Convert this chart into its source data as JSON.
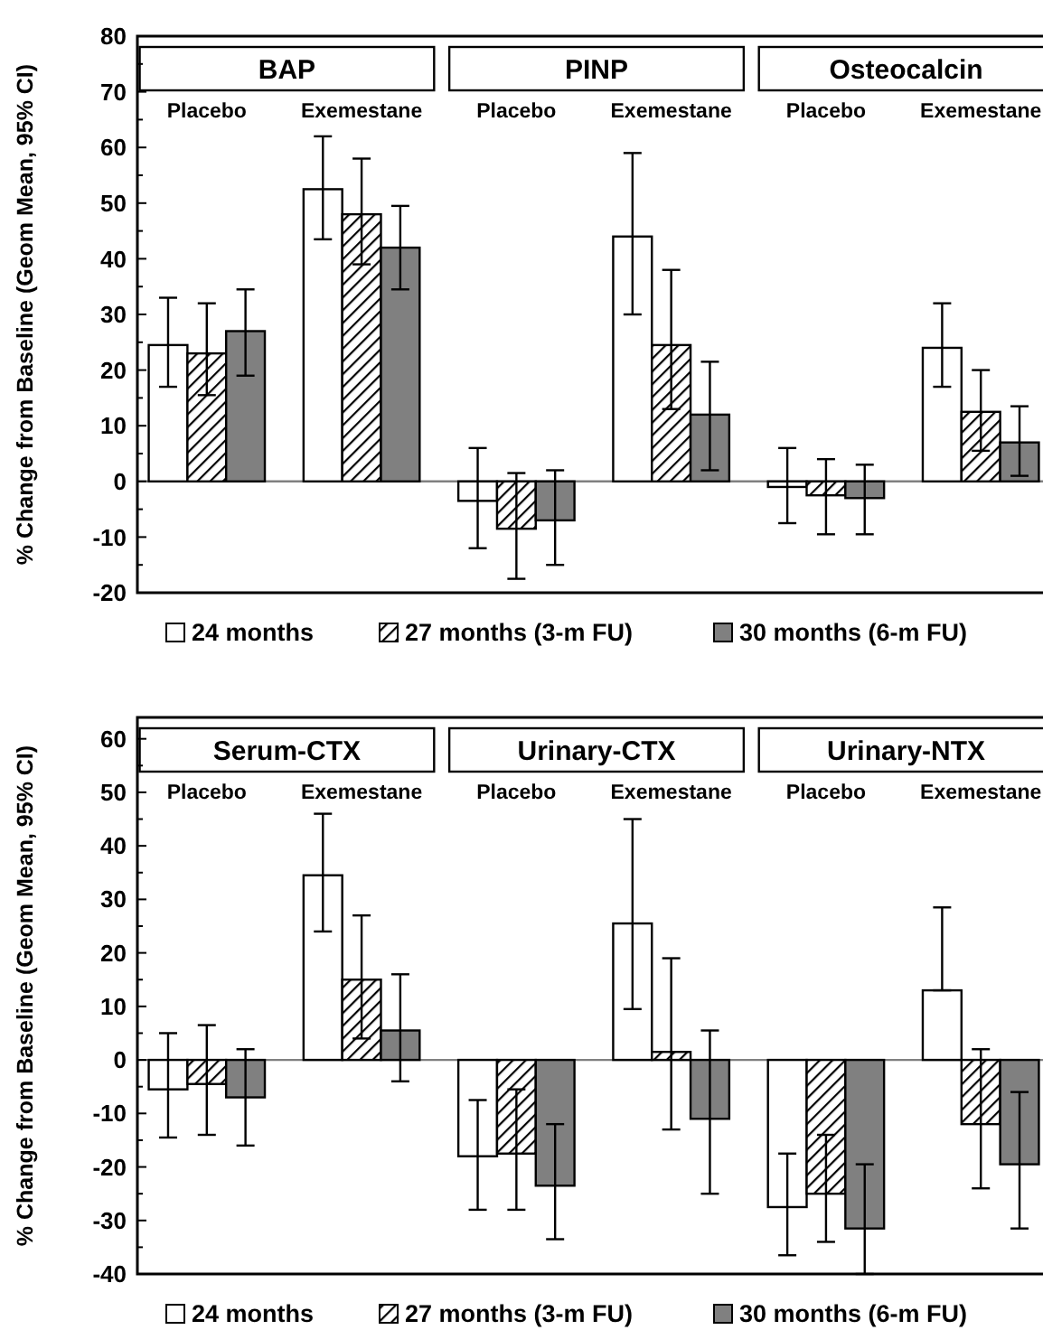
{
  "chart_data": [
    {
      "type": "bar",
      "ylabel": "% Change from Baseline (Geom Mean, 95% CI)",
      "categories": [
        "Placebo",
        "Exemestane",
        "Placebo",
        "Exemestane",
        "Placebo",
        "Exemestane"
      ],
      "annotations": [
        "BAP",
        "PINP",
        "Osteocalcin"
      ],
      "ylim": [
        -20,
        80
      ],
      "yticks": [
        -20,
        -10,
        0,
        10,
        20,
        30,
        40,
        50,
        60,
        70,
        80
      ],
      "legend": "bottom",
      "ref_lines": [
        {
          "axis": "y",
          "value": 0,
          "color": "#808080"
        }
      ],
      "series": [
        {
          "name": "24 months",
          "color": "#ffffff",
          "values": [
            24.5,
            52.5,
            -3.5,
            44,
            -1,
            24
          ],
          "errors": [
            [
              17,
              33
            ],
            [
              43.5,
              62
            ],
            [
              -12,
              6
            ],
            [
              30,
              59
            ],
            [
              -7.5,
              6
            ],
            [
              17,
              32
            ]
          ]
        },
        {
          "name": "27 months (3-m FU)",
          "color": "#000000",
          "values": [
            23,
            48,
            -8.5,
            24.5,
            -2.5,
            12.5
          ],
          "errors": [
            [
              15.5,
              32
            ],
            [
              39,
              58
            ],
            [
              -17.5,
              1.5
            ],
            [
              13,
              38
            ],
            [
              -9.5,
              4
            ],
            [
              5.5,
              20
            ]
          ]
        },
        {
          "name": "30 months (6-m FU)",
          "color": "#808080",
          "values": [
            27,
            42,
            -7,
            12,
            -3,
            7
          ],
          "errors": [
            [
              19,
              34.5
            ],
            [
              34.5,
              49.5
            ],
            [
              -15,
              2
            ],
            [
              2,
              21.5
            ],
            [
              -9.5,
              3
            ],
            [
              1,
              13.5
            ]
          ]
        }
      ]
    },
    {
      "type": "bar",
      "ylabel": "% Change from Baseline (Geom Mean, 95% CI)",
      "categories": [
        "Placebo",
        "Exemestane",
        "Placebo",
        "Exemestane",
        "Placebo",
        "Exemestane"
      ],
      "annotations": [
        "Serum-CTX",
        "Urinary-CTX",
        "Urinary-NTX"
      ],
      "ylim": [
        -40,
        64
      ],
      "yticks": [
        -40,
        -30,
        -20,
        -10,
        0,
        10,
        20,
        30,
        40,
        50,
        60
      ],
      "legend": "bottom",
      "ref_lines": [
        {
          "axis": "y",
          "value": 0,
          "color": "#808080"
        }
      ],
      "series": [
        {
          "name": "24 months",
          "color": "#ffffff",
          "values": [
            -5.5,
            34.5,
            -18,
            25.5,
            -27.5,
            13
          ],
          "errors": [
            [
              -14.5,
              5
            ],
            [
              24,
              46
            ],
            [
              -28,
              -7.5
            ],
            [
              9.5,
              45
            ],
            [
              -36.5,
              -17.5
            ],
            [
              13,
              28.5
            ]
          ]
        },
        {
          "name": "27 months (3-m FU)",
          "color": "#000000",
          "values": [
            -4.5,
            15,
            -17.5,
            1.5,
            -25,
            -12
          ],
          "errors": [
            [
              -14,
              6.5
            ],
            [
              4,
              27
            ],
            [
              -28,
              -5.5
            ],
            [
              -13,
              19
            ],
            [
              -34,
              -14
            ],
            [
              -24,
              2
            ]
          ]
        },
        {
          "name": "30 months (6-m FU)",
          "color": "#808080",
          "values": [
            -7,
            5.5,
            -23.5,
            -11,
            -31.5,
            -19.5
          ],
          "errors": [
            [
              -16,
              2
            ],
            [
              -4,
              16
            ],
            [
              -33.5,
              -12
            ],
            [
              -25,
              5.5
            ],
            [
              -40,
              -19.5
            ],
            [
              -31.5,
              -6
            ]
          ]
        }
      ]
    }
  ]
}
